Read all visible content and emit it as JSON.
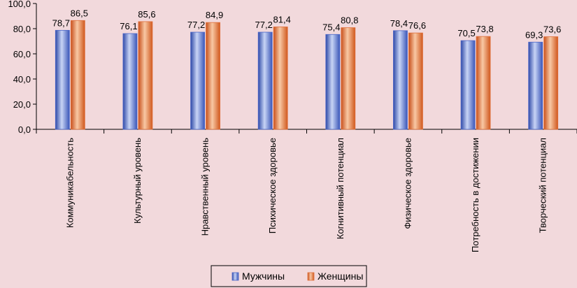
{
  "chart_data": {
    "type": "bar",
    "categories": [
      "Коммуникабельность",
      "Культурный уровень",
      "Нравственный уровень",
      "Психическое здоровье",
      "Когнитивный потенциал",
      "Физическое здоровье",
      "Потребность в достижении",
      "Творческий потенциал"
    ],
    "series": [
      {
        "name": "Мужчины",
        "values": [
          78.7,
          76.1,
          77.2,
          77.2,
          75.4,
          78.4,
          70.5,
          69.3
        ],
        "color": "#4a66c8"
      },
      {
        "name": "Женщины",
        "values": [
          86.5,
          85.6,
          84.9,
          81.4,
          80.8,
          76.6,
          73.8,
          73.6
        ],
        "color": "#e0703a"
      }
    ],
    "data_labels": {
      "Мужчины": [
        "78,7",
        "76,1",
        "77,2",
        "77,2",
        "75,4",
        "78,4",
        "70,5",
        "69,3"
      ],
      "Женщины": [
        "86,5",
        "85,6",
        "84,9",
        "81,4",
        "80,8",
        "76,6",
        "73,8",
        "73,6"
      ]
    },
    "y_ticks": [
      "0,0",
      "20,0",
      "40,0",
      "60,0",
      "80,0",
      "100,0"
    ],
    "ylim": [
      0,
      100
    ],
    "legend_position": "bottom",
    "grid": false
  }
}
